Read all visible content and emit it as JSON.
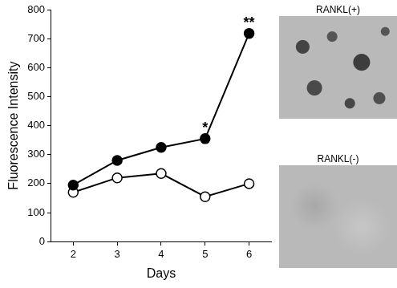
{
  "chart_data": {
    "type": "line",
    "x_label": "Days",
    "y_label": "Fluorescence Intensity",
    "categories": [
      2,
      3,
      4,
      5,
      6
    ],
    "series": [
      {
        "name": "RANKL(+)",
        "color": "#000000",
        "marker": "circle",
        "values": [
          195,
          280,
          325,
          355,
          718
        ]
      },
      {
        "name": "RANKL(-)",
        "color": "#000000",
        "marker": "open circle",
        "values": [
          170,
          220,
          235,
          155,
          200
        ]
      }
    ],
    "annotations": [
      {
        "text": "*",
        "x": 5
      },
      {
        "text": "**",
        "x": 6
      }
    ],
    "ylim": [
      0,
      800
    ],
    "yticks": [
      0,
      100,
      200,
      300,
      400,
      500,
      600,
      700,
      800
    ],
    "grid": false
  }
}
